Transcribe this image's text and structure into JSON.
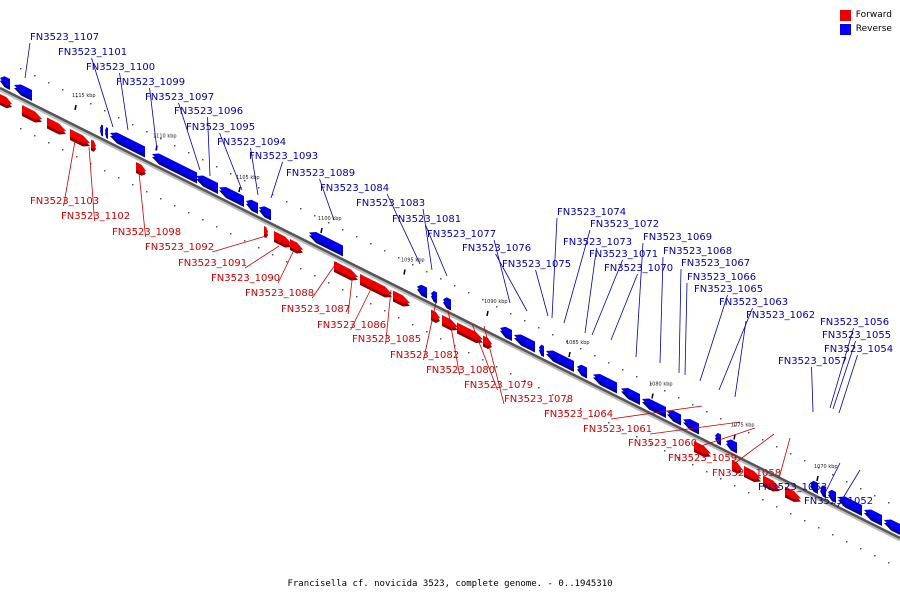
{
  "legend": {
    "forward_label": "Forward",
    "reverse_label": "Reverse",
    "forward_color": "#ee0000",
    "reverse_color": "#0000ee"
  },
  "caption": "Francisella cf. novicida 3523, complete genome. - 0..1945310",
  "ticks": [
    "1115 kbp",
    "1110 kbp",
    "1105 kbp",
    "1100 kbp",
    "1095 kbp",
    "1090 kbp",
    "1085 kbp",
    "1080 kbp",
    "1075 kbp",
    "1070 kbp"
  ],
  "reverse_genes": [
    "FN3523_1107",
    "FN3523_1101",
    "FN3523_1100",
    "FN3523_1099",
    "FN3523_1097",
    "FN3523_1096",
    "FN3523_1095",
    "FN3523_1094",
    "FN3523_1093",
    "FN3523_1089",
    "FN3523_1084",
    "FN3523_1083",
    "FN3523_1081",
    "FN3523_1077",
    "FN3523_1076",
    "FN3523_1075",
    "FN3523_1074",
    "FN3523_1072",
    "FN3523_1073",
    "FN3523_1071",
    "FN3523_1070",
    "FN3523_1069",
    "FN3523_1068",
    "FN3523_1067",
    "FN3523_1066",
    "FN3523_1065",
    "FN3523_1063",
    "FN3523_1062",
    "FN3523_1056",
    "FN3523_1055",
    "FN3523_1054",
    "FN3523_1057",
    "FN3523_1053",
    "FN3523_1052"
  ],
  "forward_genes": [
    "FN3523_1103",
    "FN3523_1102",
    "FN3523_1098",
    "FN3523_1092",
    "FN3523_1091",
    "FN3523_1090",
    "FN3523_1088",
    "FN3523_1087",
    "FN3523_1086",
    "FN3523_1085",
    "FN3523_1082",
    "FN3523_1080",
    "FN3523_1079",
    "FN3523_1078",
    "FN3523_1064",
    "FN3523_1061",
    "FN3523_1060",
    "FN3523_1059",
    "FN3523_1058"
  ]
}
